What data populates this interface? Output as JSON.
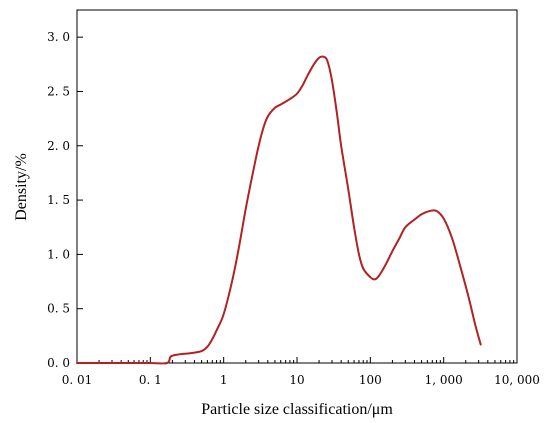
{
  "chart_data": {
    "type": "line",
    "title": "",
    "xlabel": "Particle size classification/μm",
    "ylabel": "Density/%",
    "xscale": "log",
    "xlim": [
      0.01,
      10000
    ],
    "ylim": [
      0,
      3.25
    ],
    "grid": false,
    "legend": "none",
    "x_ticks": [
      {
        "value": 0.01,
        "label": "0. 01"
      },
      {
        "value": 0.1,
        "label": "0. 1"
      },
      {
        "value": 1,
        "label": "1"
      },
      {
        "value": 10,
        "label": "10"
      },
      {
        "value": 100,
        "label": "100"
      },
      {
        "value": 1000,
        "label": "1, 000"
      },
      {
        "value": 10000,
        "label": "10, 000"
      }
    ],
    "y_ticks": [
      {
        "value": 0,
        "label": "0. 0"
      },
      {
        "value": 0.5,
        "label": "0. 5"
      },
      {
        "value": 1.0,
        "label": "1. 0"
      },
      {
        "value": 1.5,
        "label": "1. 5"
      },
      {
        "value": 2.0,
        "label": "2. 0"
      },
      {
        "value": 2.5,
        "label": "2. 5"
      },
      {
        "value": 3.0,
        "label": "3. 0"
      }
    ],
    "series": [
      {
        "color": "#b22222",
        "points": [
          [
            0.01,
            0
          ],
          [
            0.05,
            0
          ],
          [
            0.1,
            0
          ],
          [
            0.17,
            0
          ],
          [
            0.19,
            0.06
          ],
          [
            0.25,
            0.08
          ],
          [
            0.35,
            0.09
          ],
          [
            0.5,
            0.11
          ],
          [
            0.6,
            0.15
          ],
          [
            0.7,
            0.22
          ],
          [
            0.8,
            0.3
          ],
          [
            1.0,
            0.45
          ],
          [
            1.3,
            0.75
          ],
          [
            1.6,
            1.05
          ],
          [
            2.0,
            1.42
          ],
          [
            2.5,
            1.75
          ],
          [
            3.0,
            2.0
          ],
          [
            3.5,
            2.17
          ],
          [
            4.0,
            2.27
          ],
          [
            5.0,
            2.35
          ],
          [
            6.0,
            2.38
          ],
          [
            8.0,
            2.43
          ],
          [
            10.0,
            2.48
          ],
          [
            12.0,
            2.56
          ],
          [
            14.0,
            2.65
          ],
          [
            17.0,
            2.75
          ],
          [
            20.0,
            2.81
          ],
          [
            23.0,
            2.82
          ],
          [
            26.0,
            2.78
          ],
          [
            30.0,
            2.6
          ],
          [
            35.0,
            2.3
          ],
          [
            40.0,
            2.0
          ],
          [
            50.0,
            1.6
          ],
          [
            60.0,
            1.25
          ],
          [
            70.0,
            1.0
          ],
          [
            80.0,
            0.87
          ],
          [
            100.0,
            0.79
          ],
          [
            115.0,
            0.77
          ],
          [
            130.0,
            0.8
          ],
          [
            160.0,
            0.9
          ],
          [
            200.0,
            1.03
          ],
          [
            250.0,
            1.15
          ],
          [
            300.0,
            1.25
          ],
          [
            400.0,
            1.32
          ],
          [
            500.0,
            1.37
          ],
          [
            650.0,
            1.4
          ],
          [
            800.0,
            1.4
          ],
          [
            1000.0,
            1.33
          ],
          [
            1300.0,
            1.15
          ],
          [
            1700.0,
            0.88
          ],
          [
            2200.0,
            0.6
          ],
          [
            2700.0,
            0.35
          ],
          [
            3200.0,
            0.17
          ]
        ]
      }
    ]
  }
}
